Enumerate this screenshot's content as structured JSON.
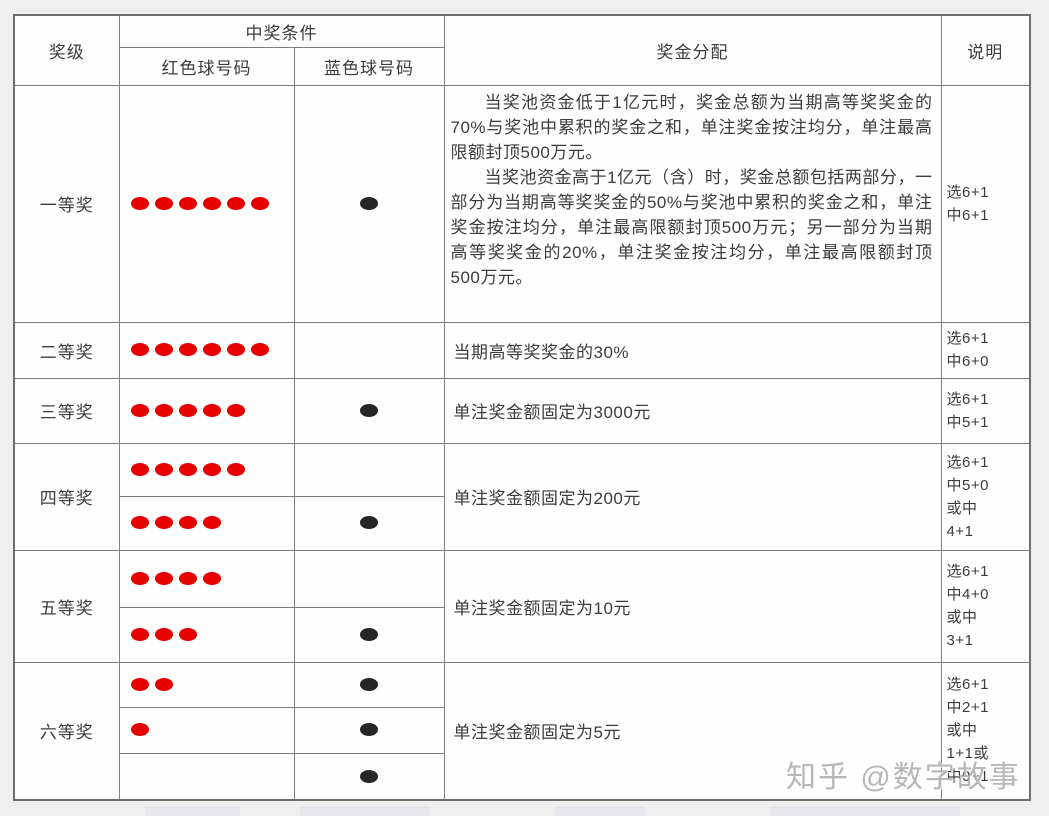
{
  "header": {
    "prize_level": "奖级",
    "winning_condition": "中奖条件",
    "red_balls": "红色球号码",
    "blue_balls": "蓝色球号码",
    "prize_distribution": "奖金分配",
    "note": "说明"
  },
  "colors": {
    "red_ball": "#e60000",
    "blue_ball": "#262626",
    "border": "#7d7d7d"
  },
  "rows": [
    {
      "level": "一等奖",
      "conditions": [
        {
          "red": 6,
          "blue": 1
        }
      ],
      "prize_paragraphs": [
        "当奖池资金低于1亿元时，奖金总额为当期高等奖奖金的70%与奖池中累积的奖金之和，单注奖金按注均分，单注最高限额封顶500万元。",
        "当奖池资金高于1亿元（含）时，奖金总额包括两部分，一部分为当期高等奖奖金的50%与奖池中累积的奖金之和，单注奖金按注均分，单注最高限额封顶500万元；另一部分为当期高等奖奖金的20%，单注奖金按注均分，单注最高限额封顶500万元。"
      ],
      "note": "选6+1\n中6+1"
    },
    {
      "level": "二等奖",
      "conditions": [
        {
          "red": 6,
          "blue": 0
        }
      ],
      "prize": "当期高等奖奖金的30%",
      "note": "选6+1\n中6+0"
    },
    {
      "level": "三等奖",
      "conditions": [
        {
          "red": 5,
          "blue": 1
        }
      ],
      "prize": "单注奖金额固定为3000元",
      "note": "选6+1\n中5+1"
    },
    {
      "level": "四等奖",
      "conditions": [
        {
          "red": 5,
          "blue": 0
        },
        {
          "red": 4,
          "blue": 1
        }
      ],
      "prize": "单注奖金额固定为200元",
      "note": "选6+1\n中5+0\n或中\n4+1"
    },
    {
      "level": "五等奖",
      "conditions": [
        {
          "red": 4,
          "blue": 0
        },
        {
          "red": 3,
          "blue": 1
        }
      ],
      "prize": "单注奖金额固定为10元",
      "note": "选6+1\n中4+0\n或中\n3+1"
    },
    {
      "level": "六等奖",
      "conditions": [
        {
          "red": 2,
          "blue": 1
        },
        {
          "red": 1,
          "blue": 1
        },
        {
          "red": 0,
          "blue": 1
        }
      ],
      "prize": "单注奖金额固定为5元",
      "note": "选6+1\n中2+1\n或中\n1+1或\n中0+1"
    }
  ],
  "watermark": "知乎 @数字故事"
}
